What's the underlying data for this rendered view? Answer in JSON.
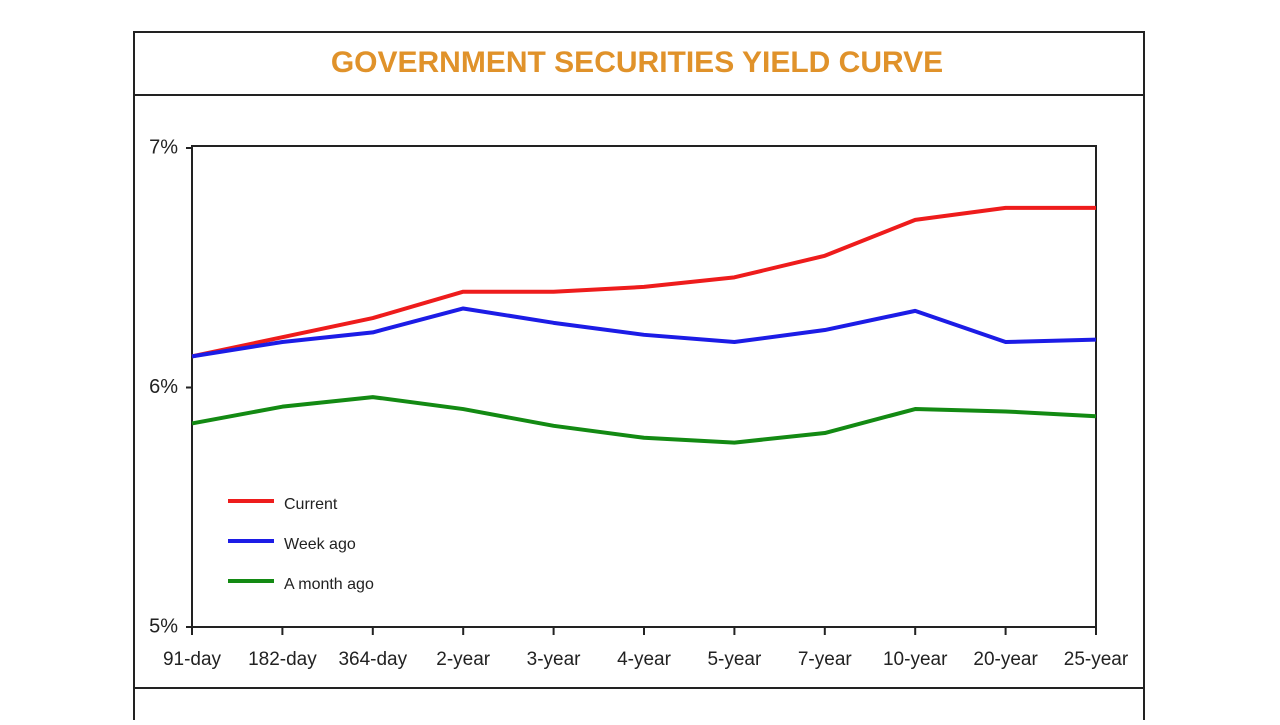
{
  "chart_data": {
    "type": "line",
    "title": "GOVERNMENT SECURITIES YIELD CURVE",
    "categories": [
      "91-day",
      "182-day",
      "364-day",
      "2-year",
      "3-year",
      "4-year",
      "5-year",
      "7-year",
      "10-year",
      "20-year",
      "25-year"
    ],
    "series": [
      {
        "name": "Current",
        "color": "#ee1c1c",
        "values": [
          6.13,
          6.21,
          6.29,
          6.4,
          6.4,
          6.42,
          6.46,
          6.55,
          6.7,
          6.75,
          6.75
        ]
      },
      {
        "name": "Week ago",
        "color": "#1c1ce6",
        "values": [
          6.13,
          6.19,
          6.23,
          6.33,
          6.27,
          6.22,
          6.19,
          6.24,
          6.32,
          6.19,
          6.2
        ]
      },
      {
        "name": "A month ago",
        "color": "#138a13",
        "values": [
          5.85,
          5.92,
          5.96,
          5.91,
          5.84,
          5.79,
          5.77,
          5.81,
          5.91,
          5.9,
          5.88
        ]
      }
    ],
    "ylim": [
      5,
      7
    ],
    "yticks": [
      {
        "value": 5,
        "label": "5%"
      },
      {
        "value": 6,
        "label": "6%"
      },
      {
        "value": 7,
        "label": "7%"
      }
    ],
    "grid": false,
    "legend": "bottom-left"
  }
}
